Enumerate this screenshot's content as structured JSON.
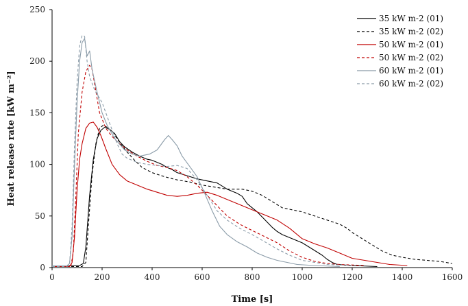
{
  "chart_data": {
    "type": "line",
    "xlabel": "Time [s]",
    "ylabel": "Heat release rate [kW m⁻²]",
    "xlim": [
      0,
      1600
    ],
    "ylim": [
      0,
      250
    ],
    "x_ticks": [
      0,
      200,
      400,
      600,
      800,
      1000,
      1200,
      1400,
      1600
    ],
    "y_ticks": [
      0,
      50,
      100,
      150,
      200,
      250
    ],
    "x_tick_labels": [
      "0",
      "200",
      "400",
      "600",
      "800",
      "1000",
      "1200",
      "1400",
      "1600"
    ],
    "y_tick_labels": [
      "0",
      "50",
      "100",
      "150",
      "200",
      "250"
    ],
    "grid": false,
    "legend_position": "top-right",
    "series": [
      {
        "name": "35 kW m-2 (01)",
        "color": "#000000",
        "dash": "solid",
        "points": [
          [
            0,
            2
          ],
          [
            110,
            2
          ],
          [
            125,
            4
          ],
          [
            135,
            20
          ],
          [
            150,
            70
          ],
          [
            165,
            105
          ],
          [
            180,
            125
          ],
          [
            195,
            133
          ],
          [
            210,
            136
          ],
          [
            230,
            134
          ],
          [
            250,
            130
          ],
          [
            270,
            122
          ],
          [
            290,
            117
          ],
          [
            320,
            112
          ],
          [
            350,
            108
          ],
          [
            380,
            105
          ],
          [
            400,
            104
          ],
          [
            420,
            102
          ],
          [
            440,
            100
          ],
          [
            460,
            97
          ],
          [
            480,
            95
          ],
          [
            500,
            92
          ],
          [
            540,
            89
          ],
          [
            580,
            86
          ],
          [
            620,
            84
          ],
          [
            660,
            82
          ],
          [
            700,
            76
          ],
          [
            740,
            72
          ],
          [
            760,
            69
          ],
          [
            780,
            62
          ],
          [
            800,
            58
          ],
          [
            820,
            54
          ],
          [
            840,
            49
          ],
          [
            860,
            44
          ],
          [
            880,
            39
          ],
          [
            900,
            35
          ],
          [
            920,
            32
          ],
          [
            940,
            30
          ],
          [
            960,
            28
          ],
          [
            1000,
            24
          ],
          [
            1040,
            18
          ],
          [
            1080,
            12
          ],
          [
            1100,
            8
          ],
          [
            1120,
            5
          ],
          [
            1140,
            3
          ],
          [
            1200,
            2
          ],
          [
            1300,
            1
          ]
        ]
      },
      {
        "name": "35 kW m-2 (02)",
        "color": "#000000",
        "dash": "dashed",
        "points": [
          [
            0,
            1
          ],
          [
            120,
            1
          ],
          [
            135,
            5
          ],
          [
            145,
            40
          ],
          [
            160,
            90
          ],
          [
            175,
            120
          ],
          [
            190,
            135
          ],
          [
            205,
            138
          ],
          [
            220,
            136
          ],
          [
            240,
            132
          ],
          [
            260,
            125
          ],
          [
            280,
            118
          ],
          [
            300,
            112
          ],
          [
            330,
            104
          ],
          [
            360,
            97
          ],
          [
            400,
            92
          ],
          [
            450,
            88
          ],
          [
            500,
            85
          ],
          [
            550,
            83
          ],
          [
            600,
            80
          ],
          [
            650,
            78
          ],
          [
            700,
            76
          ],
          [
            760,
            76
          ],
          [
            800,
            74
          ],
          [
            840,
            70
          ],
          [
            880,
            64
          ],
          [
            920,
            58
          ],
          [
            960,
            56
          ],
          [
            1000,
            54
          ],
          [
            1050,
            50
          ],
          [
            1100,
            46
          ],
          [
            1150,
            42
          ],
          [
            1180,
            38
          ],
          [
            1200,
            34
          ],
          [
            1240,
            28
          ],
          [
            1280,
            22
          ],
          [
            1320,
            16
          ],
          [
            1360,
            12
          ],
          [
            1400,
            10
          ],
          [
            1450,
            8
          ],
          [
            1500,
            7
          ],
          [
            1550,
            6
          ],
          [
            1600,
            4
          ]
        ]
      },
      {
        "name": "50 kW m-2 (01)",
        "color": "#c00000",
        "dash": "solid",
        "points": [
          [
            0,
            1
          ],
          [
            70,
            1
          ],
          [
            80,
            5
          ],
          [
            90,
            30
          ],
          [
            100,
            75
          ],
          [
            110,
            105
          ],
          [
            120,
            120
          ],
          [
            135,
            135
          ],
          [
            150,
            140
          ],
          [
            165,
            141
          ],
          [
            180,
            136
          ],
          [
            195,
            128
          ],
          [
            215,
            115
          ],
          [
            240,
            100
          ],
          [
            270,
            90
          ],
          [
            300,
            84
          ],
          [
            340,
            80
          ],
          [
            380,
            76
          ],
          [
            420,
            73
          ],
          [
            460,
            70
          ],
          [
            500,
            69
          ],
          [
            540,
            70
          ],
          [
            580,
            72
          ],
          [
            620,
            73
          ],
          [
            660,
            70
          ],
          [
            700,
            66
          ],
          [
            750,
            61
          ],
          [
            800,
            56
          ],
          [
            850,
            51
          ],
          [
            900,
            46
          ],
          [
            950,
            38
          ],
          [
            1000,
            28
          ],
          [
            1050,
            23
          ],
          [
            1100,
            19
          ],
          [
            1150,
            14
          ],
          [
            1200,
            9
          ],
          [
            1250,
            7
          ],
          [
            1300,
            5
          ],
          [
            1350,
            3
          ],
          [
            1420,
            2
          ]
        ]
      },
      {
        "name": "50 kW m-2 (02)",
        "color": "#c00000",
        "dash": "dashed",
        "points": [
          [
            0,
            1
          ],
          [
            75,
            1
          ],
          [
            85,
            15
          ],
          [
            95,
            70
          ],
          [
            105,
            130
          ],
          [
            120,
            170
          ],
          [
            135,
            190
          ],
          [
            150,
            196
          ],
          [
            160,
            192
          ],
          [
            170,
            178
          ],
          [
            190,
            150
          ],
          [
            215,
            135
          ],
          [
            240,
            127
          ],
          [
            270,
            120
          ],
          [
            300,
            114
          ],
          [
            340,
            108
          ],
          [
            380,
            103
          ],
          [
            420,
            99
          ],
          [
            460,
            97
          ],
          [
            500,
            94
          ],
          [
            540,
            88
          ],
          [
            580,
            80
          ],
          [
            620,
            70
          ],
          [
            660,
            60
          ],
          [
            700,
            50
          ],
          [
            750,
            42
          ],
          [
            800,
            36
          ],
          [
            850,
            30
          ],
          [
            900,
            24
          ],
          [
            950,
            16
          ],
          [
            1000,
            10
          ],
          [
            1050,
            6
          ],
          [
            1100,
            4
          ],
          [
            1150,
            3
          ],
          [
            1250,
            2
          ]
        ]
      },
      {
        "name": "60 kW m-2 (01)",
        "color": "#8a9ba8",
        "dash": "solid",
        "points": [
          [
            0,
            2
          ],
          [
            60,
            2
          ],
          [
            70,
            4
          ],
          [
            80,
            30
          ],
          [
            90,
            100
          ],
          [
            100,
            160
          ],
          [
            110,
            200
          ],
          [
            120,
            218
          ],
          [
            130,
            222
          ],
          [
            140,
            205
          ],
          [
            150,
            210
          ],
          [
            160,
            192
          ],
          [
            180,
            170
          ],
          [
            200,
            150
          ],
          [
            220,
            138
          ],
          [
            250,
            125
          ],
          [
            290,
            114
          ],
          [
            320,
            110
          ],
          [
            350,
            108
          ],
          [
            390,
            110
          ],
          [
            420,
            114
          ],
          [
            450,
            124
          ],
          [
            465,
            128
          ],
          [
            480,
            124
          ],
          [
            500,
            118
          ],
          [
            520,
            108
          ],
          [
            550,
            98
          ],
          [
            580,
            88
          ],
          [
            610,
            72
          ],
          [
            640,
            55
          ],
          [
            670,
            40
          ],
          [
            700,
            32
          ],
          [
            740,
            25
          ],
          [
            780,
            20
          ],
          [
            820,
            14
          ],
          [
            860,
            10
          ],
          [
            900,
            7
          ],
          [
            940,
            5
          ],
          [
            980,
            3
          ],
          [
            1050,
            2
          ],
          [
            1150,
            1
          ]
        ]
      },
      {
        "name": "60 kW m-2 (02)",
        "color": "#8a9ba8",
        "dash": "dashed",
        "points": [
          [
            0,
            1
          ],
          [
            60,
            1
          ],
          [
            70,
            3
          ],
          [
            80,
            40
          ],
          [
            90,
            120
          ],
          [
            100,
            180
          ],
          [
            110,
            215
          ],
          [
            120,
            225
          ],
          [
            130,
            224
          ],
          [
            140,
            200
          ],
          [
            150,
            185
          ],
          [
            170,
            172
          ],
          [
            200,
            160
          ],
          [
            230,
            140
          ],
          [
            260,
            120
          ],
          [
            280,
            110
          ],
          [
            300,
            106
          ],
          [
            340,
            102
          ],
          [
            380,
            100
          ],
          [
            420,
            99
          ],
          [
            460,
            98
          ],
          [
            500,
            99
          ],
          [
            540,
            96
          ],
          [
            580,
            85
          ],
          [
            620,
            70
          ],
          [
            660,
            55
          ],
          [
            700,
            46
          ],
          [
            750,
            38
          ],
          [
            800,
            32
          ],
          [
            850,
            25
          ],
          [
            900,
            18
          ],
          [
            950,
            12
          ],
          [
            1000,
            7
          ],
          [
            1050,
            5
          ],
          [
            1100,
            3
          ],
          [
            1200,
            2
          ]
        ]
      }
    ]
  }
}
